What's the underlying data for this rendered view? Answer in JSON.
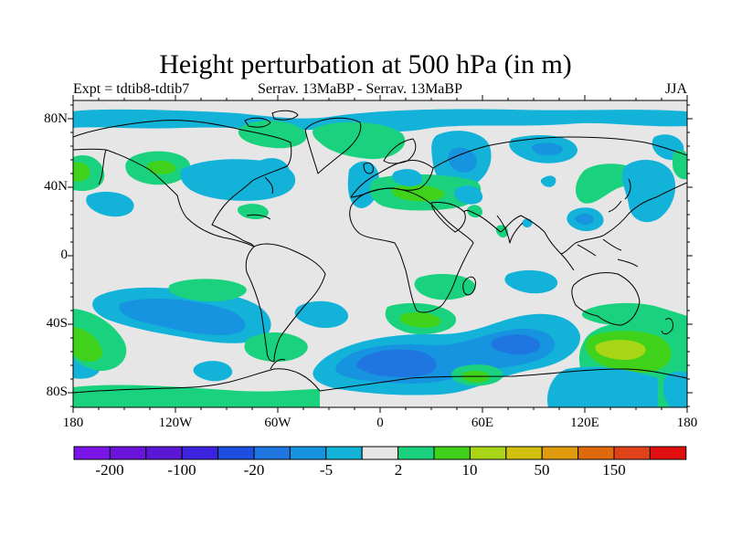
{
  "title": "Height perturbation at 500 hPa (in m)",
  "subtitle_left": "Expt = tdtib8-tdtib7",
  "subtitle_center": "Serrav.   13MaBP - Serrav.   13MaBP",
  "subtitle_right": "JJA",
  "lat_axis": [
    "80N",
    "40N",
    "0",
    "40S",
    "80S"
  ],
  "lon_axis": [
    "180",
    "120W",
    "60W",
    "0",
    "60E",
    "120E",
    "180"
  ],
  "colorbar": {
    "colors": [
      "#7b14e6",
      "#6a13db",
      "#5a17d6",
      "#3b23e0",
      "#1e4ee0",
      "#1f76e0",
      "#1694e0",
      "#13b3d9",
      "#e6e6e6",
      "#1ad27d",
      "#40d21a",
      "#a8d616",
      "#cfc10e",
      "#e09a0e",
      "#e06a0b",
      "#e0421a",
      "#e00e0e"
    ],
    "tick_labels": [
      "-200",
      "-100",
      "-20",
      "-5",
      "2",
      "10",
      "50",
      "150"
    ]
  },
  "fill_colors": {
    "background": "#e6e6e6",
    "neg_weak": "#13b3d9",
    "neg_mid": "#1694e0",
    "neg_strong": "#1f76e0",
    "pos_weak": "#1ad27d",
    "pos_mid": "#40d21a",
    "pos_strong": "#a8d616"
  }
}
